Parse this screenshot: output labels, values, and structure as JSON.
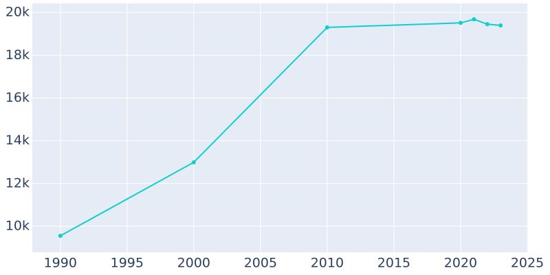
{
  "chart_data": {
    "type": "line",
    "x": [
      1990,
      2000,
      2010,
      2020,
      2021,
      2022,
      2023
    ],
    "series": [
      {
        "color": "#0fcfcf",
        "values": [
          9550,
          12990,
          19300,
          19510,
          19680,
          19450,
          19390
        ]
      }
    ],
    "xlim": [
      1987.9,
      2025.05
    ],
    "ylim": [
      8780,
      20420
    ],
    "xticks": [
      1990,
      1995,
      2000,
      2005,
      2010,
      2015,
      2020,
      2025
    ],
    "yticks": [
      {
        "value": 10000,
        "label": "10k"
      },
      {
        "value": 12000,
        "label": "12k"
      },
      {
        "value": 14000,
        "label": "14k"
      },
      {
        "value": 16000,
        "label": "16k"
      },
      {
        "value": 18000,
        "label": "18k"
      },
      {
        "value": 20000,
        "label": "20k"
      }
    ],
    "grid": true,
    "background": "#e5ecf6"
  }
}
